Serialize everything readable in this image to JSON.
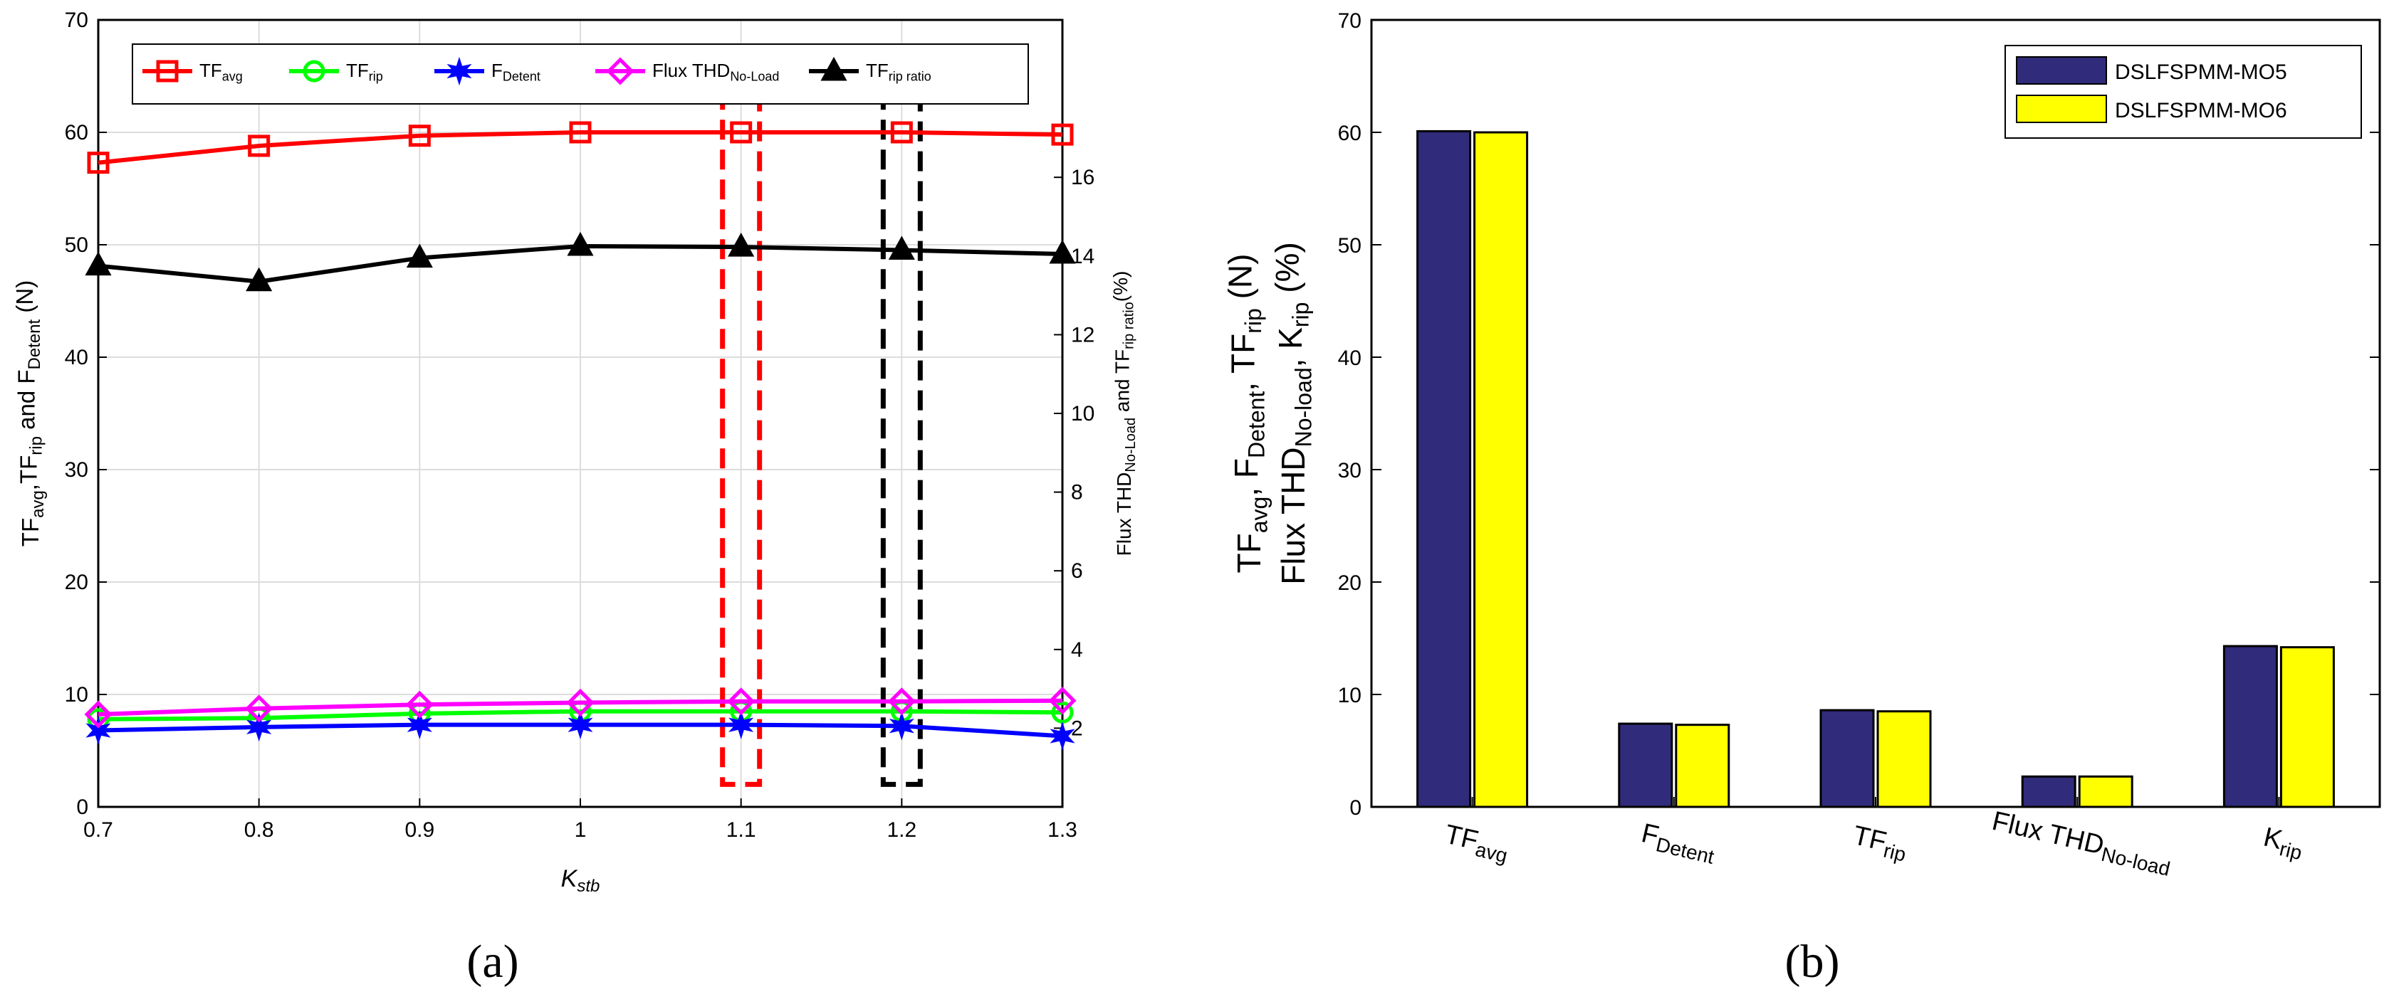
{
  "chart_data": [
    {
      "id": "a",
      "type": "line",
      "panel_label": "(a)",
      "xlabel": "K",
      "xlabel_sub": "stb",
      "ylabel_left": "TF_avg, TF_rip and F_Detent (N)",
      "ylabel_left_parts": [
        "TF",
        "avg",
        ",TF",
        "rip",
        " and F",
        "Detent",
        " (N)"
      ],
      "ylabel_right": "Flux THD_No-Load and TF_rip ratio (%)",
      "ylabel_right_parts": [
        "Flux THD",
        "No-Load",
        " and TF",
        "rip ratio",
        "(%)"
      ],
      "x": [
        0.7,
        0.8,
        0.9,
        1.0,
        1.1,
        1.2,
        1.3
      ],
      "x_tick_labels": [
        "0.7",
        "0.8",
        "0.9",
        "1",
        "1.1",
        "1.2",
        "1.3"
      ],
      "xlim": [
        0.7,
        1.3
      ],
      "ylim_left": [
        0,
        70
      ],
      "y_left_ticks": [
        "0",
        "10",
        "20",
        "30",
        "40",
        "50",
        "60",
        "70"
      ],
      "ylim_right": [
        0,
        20
      ],
      "y_right_ticks": [
        "2",
        "4",
        "6",
        "8",
        "10",
        "12",
        "14",
        "16"
      ],
      "grid": true,
      "legend_position": "top",
      "series": [
        {
          "name": "TF_avg",
          "label": "TF",
          "sub": "avg",
          "axis": "left",
          "color": "#ff0000",
          "marker": "square",
          "values": [
            57.3,
            58.8,
            59.7,
            60.0,
            60.0,
            60.0,
            59.8
          ]
        },
        {
          "name": "TF_rip",
          "label": "TF",
          "sub": "rip",
          "axis": "left",
          "color": "#00ff00",
          "marker": "circle",
          "values": [
            7.8,
            7.9,
            8.3,
            8.5,
            8.5,
            8.5,
            8.4
          ]
        },
        {
          "name": "F_Detent",
          "label": "F",
          "sub": "Detent",
          "axis": "left",
          "color": "#0000ff",
          "marker": "star",
          "values": [
            6.8,
            7.1,
            7.3,
            7.3,
            7.3,
            7.2,
            6.3
          ]
        },
        {
          "name": "Flux THD_No-Load",
          "label": "Flux THD",
          "sub": "No-Load",
          "axis": "right",
          "color": "#ff00ff",
          "marker": "diamond",
          "values": [
            2.35,
            2.5,
            2.6,
            2.65,
            2.68,
            2.68,
            2.7
          ]
        },
        {
          "name": "TF_rip ratio",
          "label": "TF",
          "sub": "rip ratio",
          "axis": "right",
          "color": "#000000",
          "marker": "triangle",
          "values": [
            13.75,
            13.35,
            13.95,
            14.25,
            14.23,
            14.15,
            14.05
          ]
        }
      ],
      "highlight_boxes": [
        {
          "x_center": 1.1,
          "color": "#ff0000",
          "y_range": [
            2,
            63
          ]
        },
        {
          "x_center": 1.2,
          "color": "#000000",
          "y_range": [
            2,
            63
          ]
        }
      ]
    },
    {
      "id": "b",
      "type": "bar",
      "panel_label": "(b)",
      "ylabel_line1_parts": [
        "TF",
        "avg",
        ", F",
        "Detent",
        ", TF",
        "rip",
        " (N)"
      ],
      "ylabel_line2_parts": [
        "Flux THD",
        "No-load",
        ", K",
        "rip",
        " (%)"
      ],
      "categories": [
        "TF_avg",
        "F_Detent",
        "TF_rip",
        "Flux THD_No-load",
        "K_rip"
      ],
      "category_labels": [
        {
          "main": "TF",
          "sub": "avg"
        },
        {
          "main": "F",
          "sub": "Detent"
        },
        {
          "main": "TF",
          "sub": "rip"
        },
        {
          "main": "Flux THD",
          "sub": "No-load"
        },
        {
          "main": "K",
          "sub": "rip"
        }
      ],
      "ylim": [
        0,
        70
      ],
      "y_ticks": [
        "0",
        "10",
        "20",
        "30",
        "40",
        "50",
        "60",
        "70"
      ],
      "grid": false,
      "legend_position": "top-right",
      "series": [
        {
          "name": "DSLFSPMM-MO5",
          "color": "#312b7c",
          "values": [
            60.1,
            7.4,
            8.6,
            2.7,
            14.3
          ]
        },
        {
          "name": "DSLFSPMM-MO6",
          "color": "#ffff00",
          "values": [
            60.0,
            7.3,
            8.5,
            2.7,
            14.2
          ]
        }
      ]
    }
  ]
}
